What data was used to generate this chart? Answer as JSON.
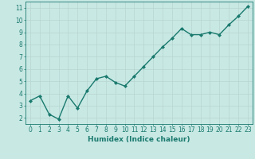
{
  "x": [
    0,
    1,
    2,
    3,
    4,
    5,
    6,
    7,
    8,
    9,
    10,
    11,
    12,
    13,
    14,
    15,
    16,
    17,
    18,
    19,
    20,
    21,
    22,
    23
  ],
  "y": [
    3.4,
    3.8,
    2.3,
    1.9,
    3.8,
    2.8,
    4.2,
    5.2,
    5.4,
    4.9,
    4.6,
    5.4,
    6.2,
    7.0,
    7.8,
    8.5,
    9.3,
    8.8,
    8.8,
    9.0,
    8.8,
    9.6,
    10.3,
    11.1
  ],
  "line_color": "#1a7a6e",
  "marker": "D",
  "marker_size": 2.0,
  "bg_color": "#c8e8e4",
  "grid_color": "#b8d4d0",
  "xlabel": "Humidex (Indice chaleur)",
  "xlim": [
    -0.5,
    23.5
  ],
  "ylim": [
    1.5,
    11.5
  ],
  "yticks": [
    2,
    3,
    4,
    5,
    6,
    7,
    8,
    9,
    10,
    11
  ],
  "xticks": [
    0,
    1,
    2,
    3,
    4,
    5,
    6,
    7,
    8,
    9,
    10,
    11,
    12,
    13,
    14,
    15,
    16,
    17,
    18,
    19,
    20,
    21,
    22,
    23
  ],
  "xlabel_fontsize": 6.5,
  "tick_fontsize": 5.5,
  "linewidth": 1.0
}
